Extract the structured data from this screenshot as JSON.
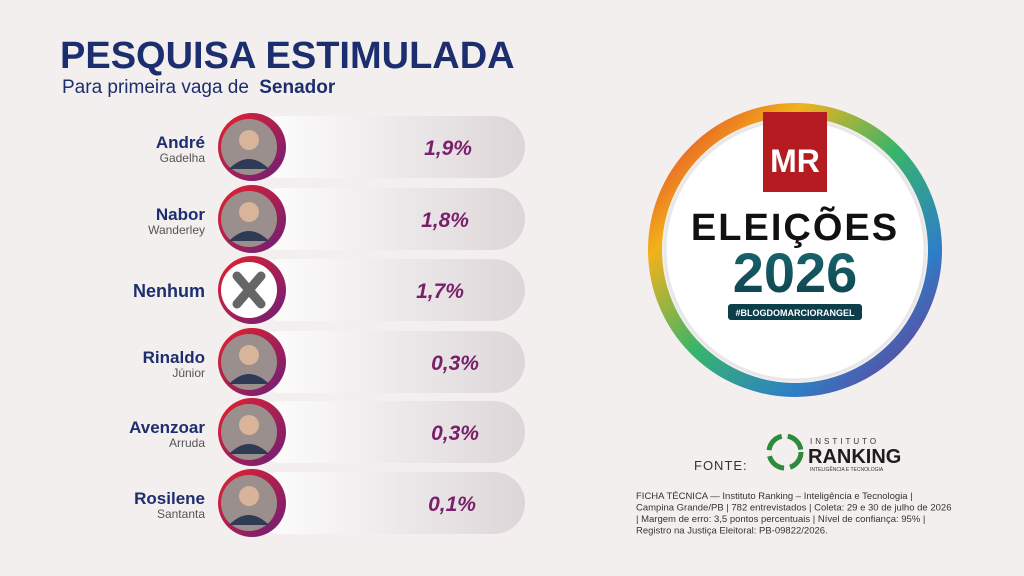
{
  "header": {
    "title": "PESQUISA ESTIMULADA",
    "subtitle": "Para primeira vaga de",
    "subtitle_bold": "Senador"
  },
  "candidates": [
    {
      "first": "André",
      "last": "Gadelha",
      "result": "1,9%"
    },
    {
      "first": "Nabor",
      "last": "Wanderley",
      "result": "1,8%"
    },
    {
      "first": "Nenhum",
      "last": null,
      "result": "1,7%"
    },
    {
      "first": "Rinaldo",
      "last": "Júnior",
      "result": "0,3%"
    },
    {
      "first": "Avenzoar",
      "last": "Arruda",
      "result": "0,3%"
    },
    {
      "first": "Rosilene",
      "last": "Santanta",
      "result": "0,1%"
    }
  ],
  "logo": {
    "brand": "MR",
    "word": "ELEIÇÕES",
    "year": "2026",
    "hashtag": "#BLOGDOMARCIORANGEL"
  },
  "source": {
    "label": "FONTE:",
    "institute": "INSTITUTO",
    "name": "RANKING",
    "tagline": "INTELIGÊNCIA E TECNOLOGIA"
  },
  "notes": [
    "FICHA TÉCNICA — Instituto Ranking – Inteligência e Tecnologia |",
    "Campina Grande/PB | 782 entrevistados | Coleta: 29 e 30 de julho de 2026",
    "| Margem de erro: 3,5 pontos percentuais | Nível de confiança: 95% |",
    "Registro na Justiça Eleitoral: PB-09822/2026."
  ]
}
